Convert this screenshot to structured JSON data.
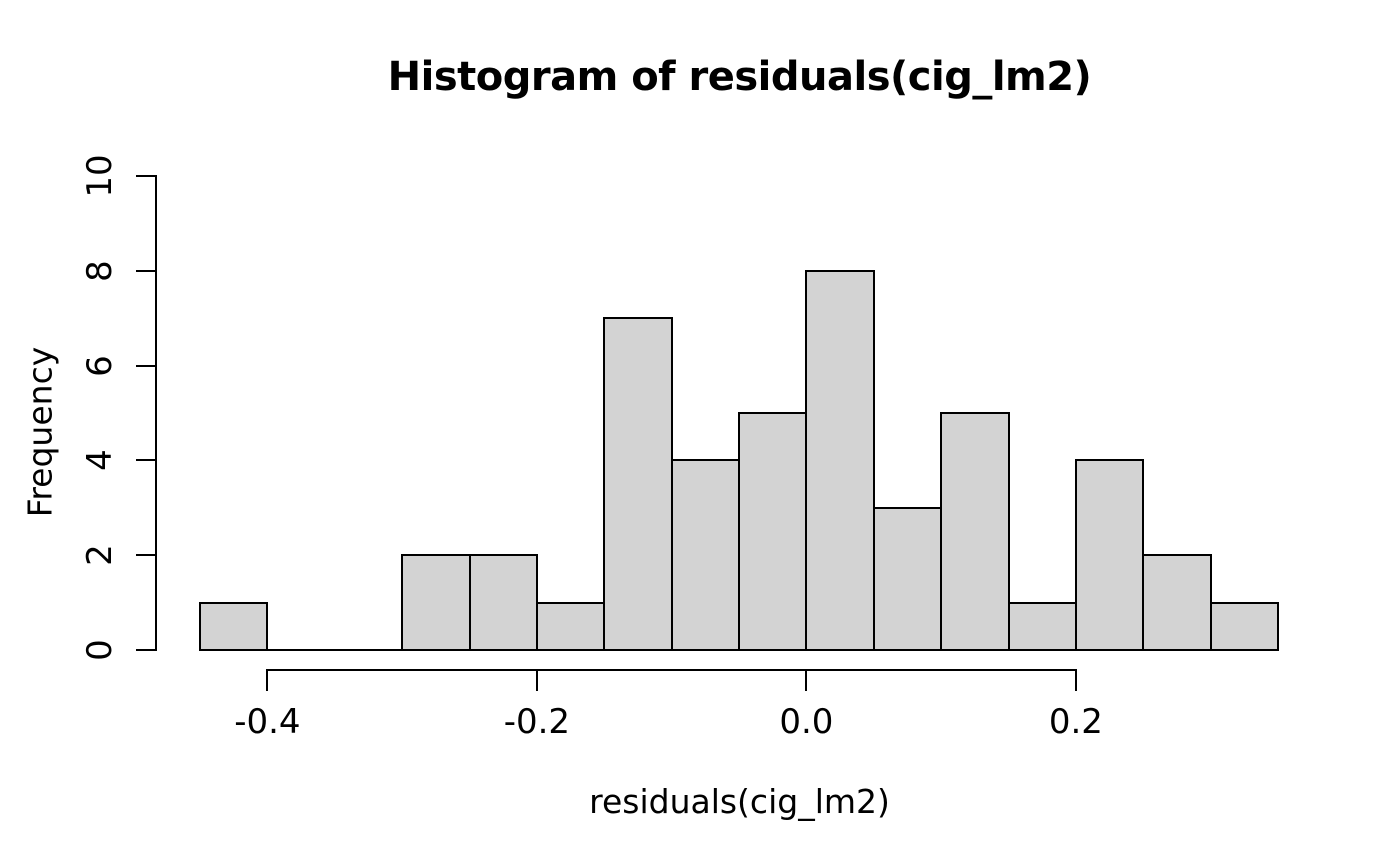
{
  "chart_data": {
    "type": "bar",
    "subtype": "histogram",
    "title": "Histogram of residuals(cig_lm2)",
    "xlabel": "residuals(cig_lm2)",
    "ylabel": "Frequency",
    "bin_edges": [
      -0.45,
      -0.4,
      -0.35,
      -0.3,
      -0.25,
      -0.2,
      -0.15,
      -0.1,
      -0.05,
      0.0,
      0.05,
      0.1,
      0.15,
      0.2,
      0.25,
      0.3,
      0.35
    ],
    "counts": [
      1,
      0,
      0,
      2,
      2,
      1,
      7,
      4,
      5,
      8,
      3,
      5,
      1,
      4,
      2,
      1
    ],
    "x_ticks": {
      "values": [
        -0.4,
        -0.2,
        0.0,
        0.2
      ],
      "labels": [
        "-0.4",
        "-0.2",
        "0.0",
        "0.2"
      ]
    },
    "y_ticks": {
      "values": [
        0,
        2,
        4,
        6,
        8,
        10
      ],
      "labels": [
        "0",
        "2",
        "4",
        "6",
        "8",
        "10"
      ]
    },
    "xlim": [
      -0.45,
      0.35
    ],
    "ylim": [
      0,
      10
    ],
    "grid": false,
    "legend": "none",
    "colors": {
      "bar_fill": "#d3d3d3",
      "bar_border": "#000000",
      "axis": "#000000",
      "text": "#000000",
      "background": "#ffffff"
    }
  }
}
